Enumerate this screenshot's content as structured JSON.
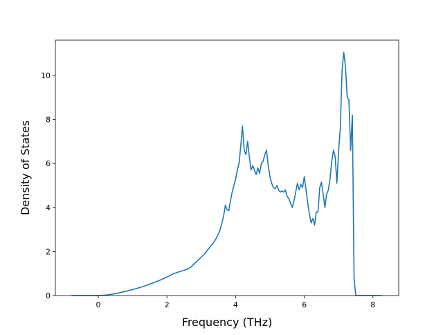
{
  "chart_data": {
    "type": "line",
    "title": "",
    "xlabel": "Frequency (THz)",
    "ylabel": "Density of States",
    "xlim": [
      -1.25,
      8.75
    ],
    "ylim": [
      0,
      11.6
    ],
    "xticks": [
      0,
      2,
      4,
      6,
      8
    ],
    "yticks": [
      0,
      2,
      4,
      6,
      8,
      10
    ],
    "grid": false,
    "legend": "none",
    "series": [
      {
        "color": "#1f77b4",
        "x": [
          -0.78,
          -0.5,
          -0.2,
          0.0,
          0.2,
          0.4,
          0.6,
          0.8,
          1.0,
          1.2,
          1.4,
          1.6,
          1.8,
          2.0,
          2.2,
          2.4,
          2.5,
          2.6,
          2.7,
          2.8,
          2.9,
          3.0,
          3.1,
          3.2,
          3.3,
          3.4,
          3.5,
          3.55,
          3.6,
          3.65,
          3.7,
          3.75,
          3.8,
          3.85,
          3.9,
          3.95,
          4.0,
          4.05,
          4.1,
          4.15,
          4.2,
          4.25,
          4.3,
          4.35,
          4.4,
          4.45,
          4.5,
          4.55,
          4.6,
          4.65,
          4.7,
          4.75,
          4.8,
          4.85,
          4.9,
          4.95,
          5.0,
          5.05,
          5.1,
          5.15,
          5.2,
          5.25,
          5.3,
          5.35,
          5.4,
          5.45,
          5.5,
          5.55,
          5.6,
          5.65,
          5.7,
          5.75,
          5.8,
          5.85,
          5.9,
          5.95,
          6.0,
          6.05,
          6.1,
          6.15,
          6.2,
          6.25,
          6.3,
          6.35,
          6.4,
          6.45,
          6.5,
          6.55,
          6.6,
          6.65,
          6.7,
          6.75,
          6.8,
          6.85,
          6.9,
          6.95,
          7.0,
          7.05,
          7.1,
          7.15,
          7.2,
          7.25,
          7.3,
          7.35,
          7.4,
          7.45,
          7.5,
          7.53,
          7.6,
          8.0,
          8.25
        ],
        "y": [
          0.0,
          0.0,
          0.0,
          0.0,
          0.02,
          0.06,
          0.12,
          0.19,
          0.27,
          0.36,
          0.46,
          0.58,
          0.7,
          0.84,
          1.0,
          1.1,
          1.15,
          1.2,
          1.3,
          1.45,
          1.6,
          1.75,
          1.9,
          2.1,
          2.3,
          2.5,
          2.8,
          3.0,
          3.3,
          3.6,
          4.1,
          3.9,
          3.85,
          4.3,
          4.7,
          5.0,
          5.3,
          5.7,
          6.0,
          6.8,
          7.7,
          6.6,
          6.4,
          7.0,
          6.3,
          5.7,
          5.9,
          5.7,
          5.5,
          5.8,
          5.55,
          6.0,
          6.1,
          6.4,
          6.6,
          5.9,
          5.4,
          5.1,
          4.9,
          4.85,
          5.0,
          4.8,
          4.7,
          4.75,
          4.7,
          4.8,
          4.5,
          4.4,
          4.2,
          4.0,
          4.3,
          4.7,
          5.1,
          4.8,
          5.05,
          4.9,
          5.4,
          4.8,
          4.2,
          3.7,
          3.3,
          3.5,
          3.2,
          3.8,
          3.8,
          4.9,
          5.15,
          4.6,
          4.0,
          4.6,
          4.8,
          5.3,
          6.1,
          6.6,
          6.3,
          5.1,
          6.6,
          7.6,
          10.2,
          11.05,
          10.4,
          9.0,
          8.9,
          6.6,
          8.2,
          0.8,
          0.0,
          0.0,
          0.0,
          0.0,
          0.0
        ]
      }
    ]
  }
}
